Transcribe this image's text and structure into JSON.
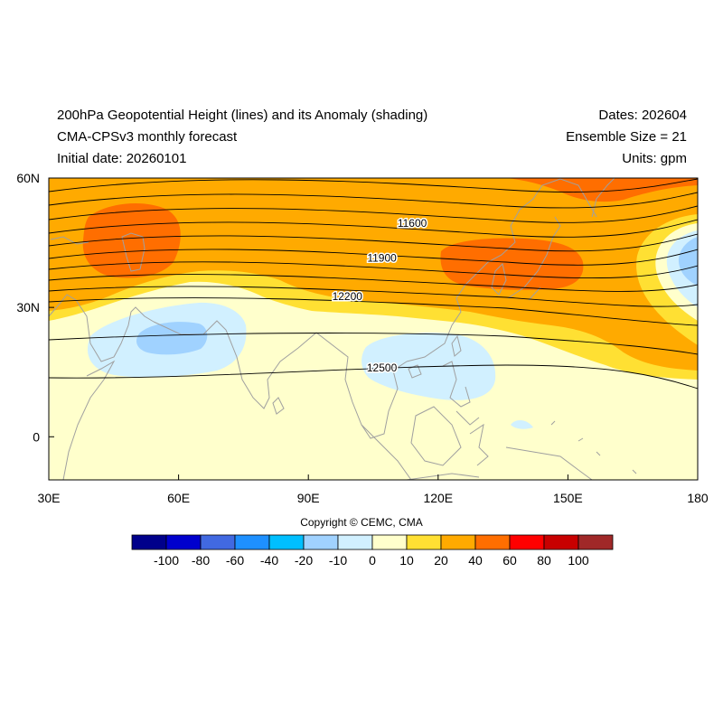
{
  "header": {
    "title": "200hPa Geopotential Height (lines) and its Anomaly (shading)",
    "model": "CMA-CPSv3 monthly forecast",
    "initial_date": "Initial date: 20260101",
    "dates": "Dates: 202604",
    "ensemble": "Ensemble Size = 21",
    "units": "Units: gpm"
  },
  "map": {
    "lon_range": [
      30,
      180
    ],
    "lat_range": [
      -10,
      60
    ],
    "lon_ticks": [
      {
        "value": 30,
        "label": "30E"
      },
      {
        "value": 60,
        "label": "60E"
      },
      {
        "value": 90,
        "label": "90E"
      },
      {
        "value": 120,
        "label": "120E"
      },
      {
        "value": 150,
        "label": "150E"
      },
      {
        "value": 180,
        "label": "180"
      }
    ],
    "lat_ticks": [
      {
        "value": 60,
        "label": "60N"
      },
      {
        "value": 30,
        "label": "30N"
      },
      {
        "value": 0,
        "label": "0"
      }
    ],
    "contour_labels": [
      {
        "value": "11600",
        "lon": 114,
        "lat": 49.5
      },
      {
        "value": "11900",
        "lon": 107,
        "lat": 41.5
      },
      {
        "value": "12200",
        "lon": 99,
        "lat": 32.5
      },
      {
        "value": "12500",
        "lon": 107,
        "lat": 16
      }
    ]
  },
  "colorbar": {
    "labels": [
      "-100",
      "-80",
      "-60",
      "-40",
      "-20",
      "-10",
      "0",
      "10",
      "20",
      "40",
      "60",
      "80",
      "100"
    ],
    "colors": [
      "#00008b",
      "#0000cd",
      "#4169e1",
      "#1e90ff",
      "#00bfff",
      "#a0d2ff",
      "#d1f0ff",
      "#ffffcc",
      "#ffe033",
      "#ffaa00",
      "#ff6e00",
      "#ff0000",
      "#c80000",
      "#a02828"
    ]
  },
  "copyright": "Copyright © CEMC, CMA"
}
